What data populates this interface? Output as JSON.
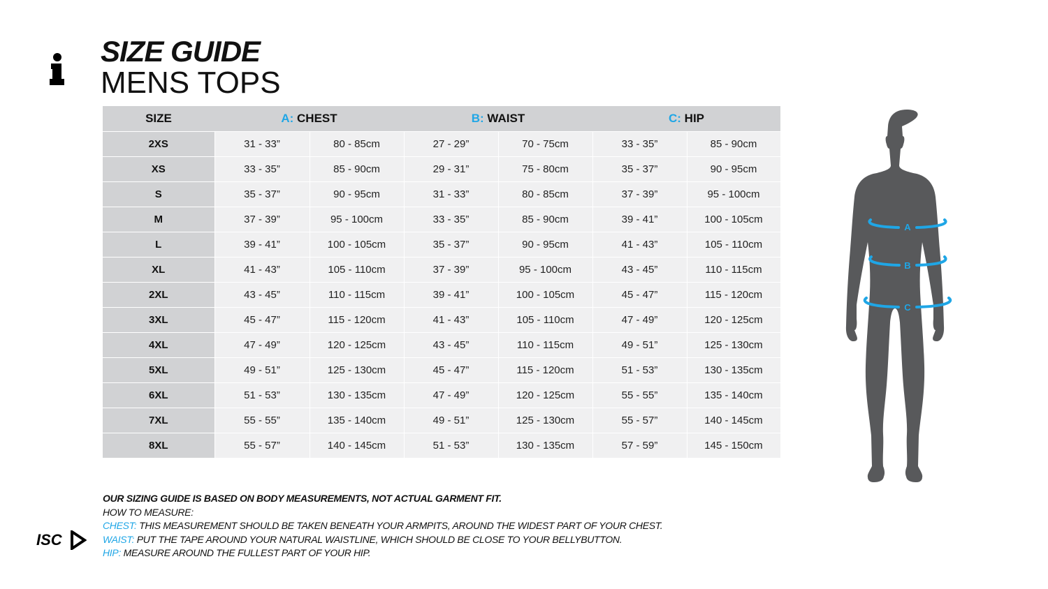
{
  "title": "SIZE GUIDE",
  "subtitle": "MENS TOPS",
  "colors": {
    "accent": "#1fa6e6",
    "header_bg": "#d1d2d4",
    "cell_bg": "#f0f0f1",
    "figure": "#58595b"
  },
  "icons": {
    "info": "info-icon",
    "logo": "isc-logo"
  },
  "logo_text": "ISC",
  "table": {
    "headers": {
      "size": "SIZE",
      "chest_key": "A:",
      "chest": "CHEST",
      "waist_key": "B:",
      "waist": "WAIST",
      "hip_key": "C:",
      "hip": "HIP"
    },
    "rows": [
      [
        "2XS",
        "31 - 33”",
        "80 - 85cm",
        "27 - 29”",
        "70 - 75cm",
        "33 - 35”",
        "85 - 90cm"
      ],
      [
        "XS",
        "33 - 35”",
        "85 - 90cm",
        "29 - 31”",
        "75 - 80cm",
        "35 - 37”",
        "90 - 95cm"
      ],
      [
        "S",
        "35 - 37”",
        "90 - 95cm",
        "31 - 33”",
        "80 - 85cm",
        "37 - 39”",
        "95 - 100cm"
      ],
      [
        "M",
        "37 - 39”",
        "95 - 100cm",
        "33 - 35”",
        "85 - 90cm",
        "39 - 41”",
        "100 - 105cm"
      ],
      [
        "L",
        "39 - 41”",
        "100 - 105cm",
        "35 - 37”",
        "90 - 95cm",
        "41 - 43”",
        "105 - 110cm"
      ],
      [
        "XL",
        "41 - 43”",
        "105 - 110cm",
        "37 - 39”",
        "95 - 100cm",
        "43 - 45”",
        "110 - 115cm"
      ],
      [
        "2XL",
        "43 - 45”",
        "110 - 115cm",
        "39 - 41”",
        "100 - 105cm",
        "45 - 47”",
        "115 - 120cm"
      ],
      [
        "3XL",
        "45 - 47”",
        "115 - 120cm",
        "41 - 43”",
        "105 - 110cm",
        "47 - 49”",
        "120 - 125cm"
      ],
      [
        "4XL",
        "47 - 49”",
        "120 - 125cm",
        "43 - 45”",
        "110 - 115cm",
        "49 - 51”",
        "125 - 130cm"
      ],
      [
        "5XL",
        "49 - 51”",
        "125 - 130cm",
        "45 - 47”",
        "115 - 120cm",
        "51 - 53”",
        "130 - 135cm"
      ],
      [
        "6XL",
        "51 - 53”",
        "130 - 135cm",
        "47 - 49”",
        "120 - 125cm",
        "55 - 55”",
        "135 - 140cm"
      ],
      [
        "7XL",
        "55 - 55”",
        "135 - 140cm",
        "49 - 51”",
        "125 - 130cm",
        "55 - 57”",
        "140 - 145cm"
      ],
      [
        "8XL",
        "55 - 57”",
        "140 - 145cm",
        "51 - 53”",
        "130 - 135cm",
        "57 - 59”",
        "145 - 150cm"
      ]
    ]
  },
  "figure_labels": [
    "A",
    "B",
    "C"
  ],
  "notes": {
    "disclaimer": "OUR SIZING GUIDE IS BASED ON BODY MEASUREMENTS, NOT ACTUAL GARMENT FIT.",
    "how": "HOW TO MEASURE:",
    "chest_label": "CHEST:",
    "chest": " THIS MEASUREMENT SHOULD BE TAKEN BENEATH YOUR ARMPITS, AROUND THE WIDEST PART OF YOUR CHEST.",
    "waist_label": "WAIST:",
    "waist": " PUT THE TAPE AROUND YOUR NATURAL WAISTLINE, WHICH SHOULD BE CLOSE TO YOUR BELLYBUTTON.",
    "hip_label": "HIP:",
    "hip": " MEASURE AROUND THE FULLEST PART OF YOUR HIP."
  }
}
